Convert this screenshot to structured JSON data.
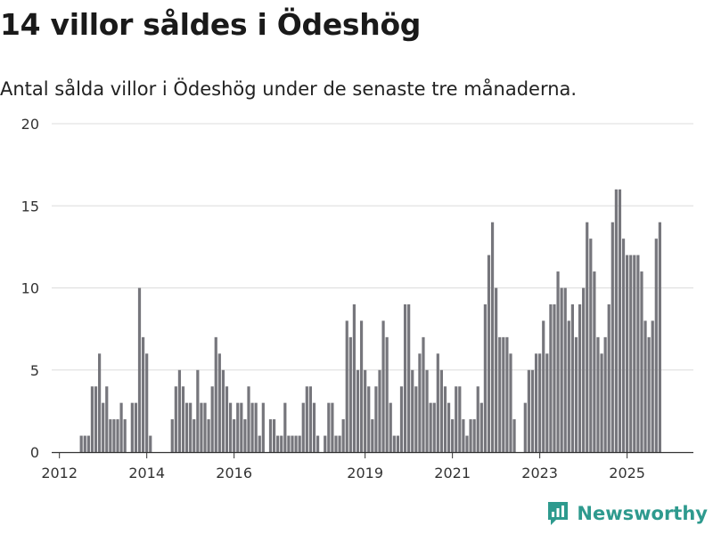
{
  "header": {
    "title": "14 villor såldes i Ödeshög",
    "subtitle": "Antal sålda villor i Ödeshög under de senaste tre månaderna."
  },
  "brand": {
    "name": "Newsworthy",
    "icon": "newsworthy-logo-icon",
    "color": "#2e9a8e"
  },
  "chart_data": {
    "type": "bar",
    "x_unit": "month",
    "x_start": "2011-12",
    "values": [
      0,
      0,
      0,
      0,
      0,
      0,
      0,
      1,
      1,
      1,
      4,
      4,
      6,
      3,
      4,
      2,
      2,
      2,
      3,
      2,
      0,
      3,
      3,
      10,
      7,
      6,
      1,
      0,
      0,
      0,
      0,
      0,
      2,
      4,
      5,
      4,
      3,
      3,
      2,
      5,
      3,
      3,
      2,
      4,
      7,
      6,
      5,
      4,
      3,
      2,
      3,
      3,
      2,
      4,
      3,
      3,
      1,
      3,
      0,
      2,
      2,
      1,
      1,
      3,
      1,
      1,
      1,
      1,
      3,
      4,
      4,
      3,
      1,
      0,
      1,
      3,
      3,
      1,
      1,
      2,
      8,
      7,
      9,
      5,
      8,
      5,
      4,
      2,
      4,
      5,
      8,
      7,
      3,
      1,
      1,
      4,
      9,
      9,
      5,
      4,
      6,
      7,
      5,
      3,
      3,
      6,
      5,
      4,
      3,
      2,
      4,
      4,
      2,
      1,
      2,
      2,
      4,
      3,
      9,
      12,
      14,
      10,
      7,
      7,
      7,
      6,
      2,
      0,
      0,
      3,
      5,
      5,
      6,
      6,
      8,
      6,
      9,
      9,
      11,
      10,
      10,
      8,
      9,
      7,
      9,
      10,
      14,
      13,
      11,
      7,
      6,
      7,
      9,
      14,
      16,
      16,
      13,
      12,
      12,
      12,
      12,
      11,
      8,
      7,
      8,
      13,
      14
    ],
    "highlight": {
      "index": 167,
      "label": "14",
      "color": "#1a9a8e"
    },
    "bar_color": "#76767c",
    "x_ticks": [
      {
        "label": "2012",
        "index": 1
      },
      {
        "label": "2014",
        "index": 25
      },
      {
        "label": "2016",
        "index": 49
      },
      {
        "label": "2019",
        "index": 85
      },
      {
        "label": "2021",
        "index": 109
      },
      {
        "label": "2023",
        "index": 133
      },
      {
        "label": "2025",
        "index": 157
      }
    ],
    "y_ticks": [
      "0",
      "5",
      "10",
      "15",
      "20"
    ],
    "ylim": [
      0,
      20
    ],
    "grid": true
  }
}
